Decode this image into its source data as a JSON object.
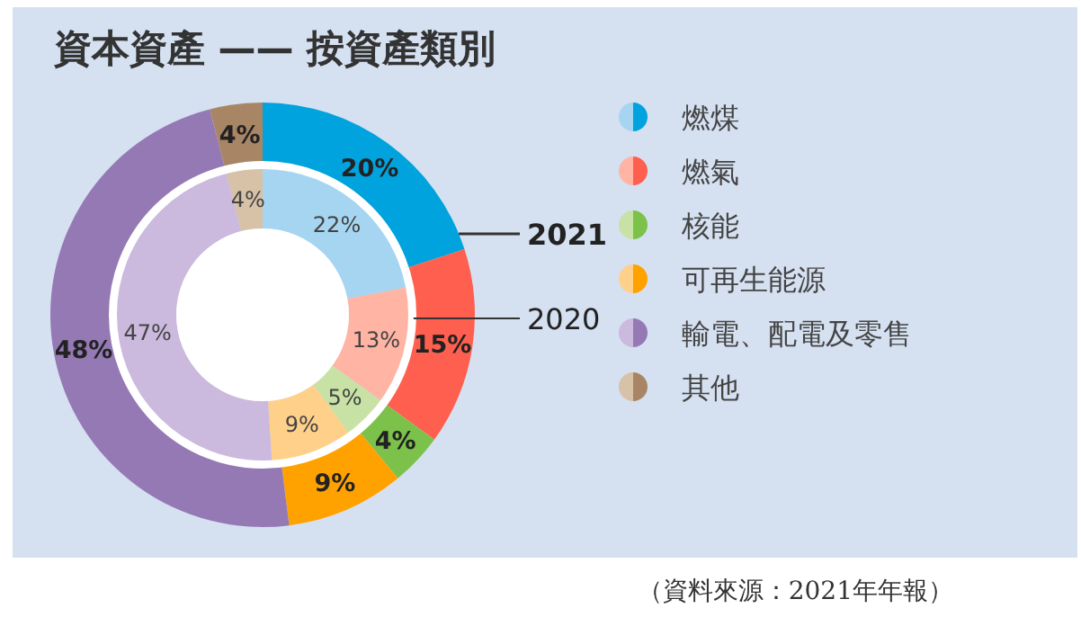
{
  "chart_data": {
    "type": "donut",
    "title": "資本資產 —— 按資產類別",
    "categories": [
      "燃煤",
      "燃氣",
      "核能",
      "可再生能源",
      "輸電、配電及零售",
      "其他"
    ],
    "series": [
      {
        "name": "2021",
        "values": [
          20,
          15,
          4,
          9,
          48,
          4
        ],
        "value_labels": [
          "20%",
          "15%",
          "4%",
          "9%",
          "48%",
          "4%"
        ],
        "colors": [
          "#00a3dd",
          "#ff5f4e",
          "#7cc24a",
          "#ffa200",
          "#9579b5",
          "#a88665"
        ]
      },
      {
        "name": "2020",
        "values": [
          22,
          13,
          5,
          9,
          47,
          4
        ],
        "value_labels": [
          "22%",
          "13%",
          "5%",
          "9%",
          "47%",
          "4%"
        ],
        "colors": [
          "#a6d5f2",
          "#ffb4a4",
          "#c7e2a4",
          "#ffd08a",
          "#cbb9de",
          "#d7c1a7"
        ]
      }
    ],
    "legend": "right",
    "annotations": [
      "（資料來源：2021年年報）"
    ]
  }
}
